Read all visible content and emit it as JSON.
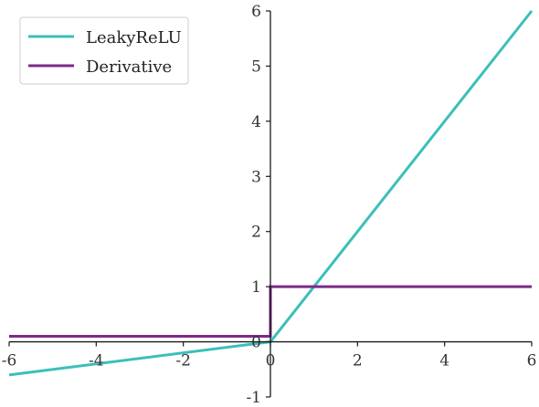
{
  "chart_data": {
    "type": "line",
    "title": "",
    "xlabel": "",
    "ylabel": "",
    "xlim": [
      -6,
      6
    ],
    "ylim": [
      -1,
      6
    ],
    "x_ticks": [
      -6,
      -4,
      -2,
      0,
      2,
      4,
      6
    ],
    "y_ticks": [
      -1,
      0,
      1,
      2,
      3,
      4,
      5,
      6
    ],
    "x_tick_labels": [
      "-6",
      "-4",
      "-2",
      "0",
      "2",
      "4",
      "6"
    ],
    "y_tick_labels": [
      "-1",
      "0",
      "1",
      "2",
      "3",
      "4",
      "5",
      "6"
    ],
    "grid": false,
    "legend_position": "top-left",
    "series": [
      {
        "name": "LeakyReLU",
        "color": "#3bbfb9",
        "points": [
          [
            -6,
            -0.6
          ],
          [
            0,
            0
          ],
          [
            6,
            6
          ]
        ]
      },
      {
        "name": "Derivative",
        "color": "#7d2a87",
        "points": [
          [
            -6,
            0.1
          ],
          [
            0,
            0.1
          ],
          [
            0,
            1
          ],
          [
            6,
            1
          ]
        ]
      }
    ]
  }
}
